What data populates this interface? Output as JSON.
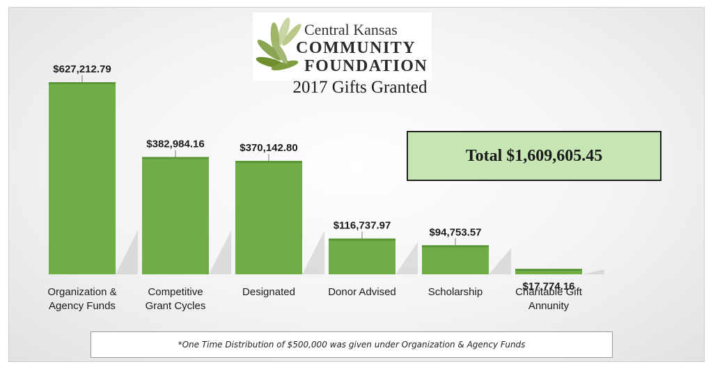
{
  "logo": {
    "line1": "Central Kansas",
    "line2": "COMMUNITY",
    "line3": "FOUNDATION"
  },
  "total_label": "Total $1,609,605.45",
  "footnote": "*One Time Distribution of $500,000 was given under Organization & Agency Funds",
  "colors": {
    "bar": "#6fae47",
    "bar_dark": "#5a9638",
    "total_box": "#c6e6b3",
    "leaf_dark": "#6f8f2f",
    "leaf_light": "#b9c98a"
  },
  "chart_data": {
    "type": "bar",
    "title": "2017 Gifts Granted",
    "categories": [
      [
        "Organization &",
        "Agency Funds"
      ],
      [
        "Competitive",
        "Grant Cycles"
      ],
      [
        "Designated"
      ],
      [
        "Donor Advised"
      ],
      [
        "Scholarship"
      ],
      [
        "Charitable Gift",
        "Annunity"
      ]
    ],
    "values": [
      627212.79,
      382984.16,
      370142.8,
      116737.97,
      94753.57,
      17774.16
    ],
    "data_labels": [
      "$627,212.79",
      "$382,984.16",
      "$370,142.80",
      "$116,737.97",
      "$94,753.57",
      "$17,774.16"
    ],
    "xlabel": "",
    "ylabel": "",
    "ylim": [
      0,
      627212.79
    ],
    "grid": false,
    "legend": "none"
  }
}
